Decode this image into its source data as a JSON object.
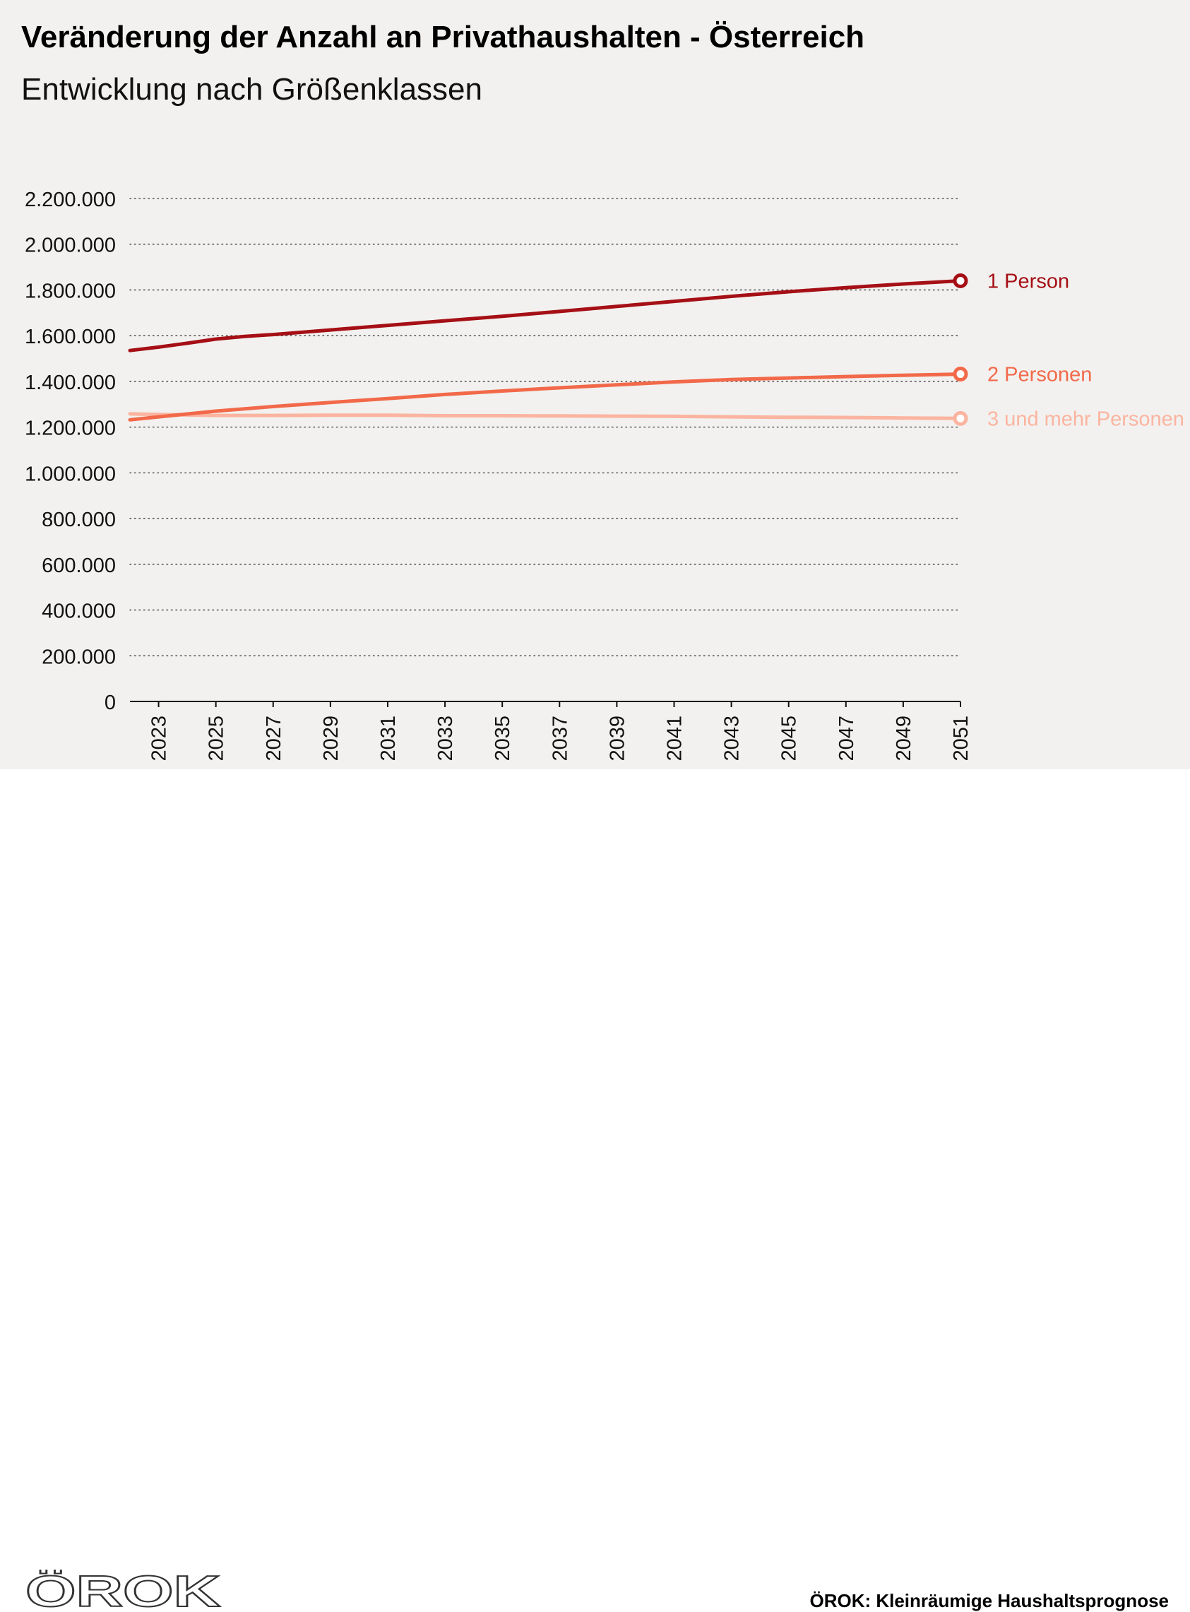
{
  "header": {
    "title": "Veränderung der Anzahl an Privathaushalten - Österreich",
    "subtitle": "Entwicklung nach Größenklassen"
  },
  "footer": {
    "logo_text": "ÖROK",
    "source": "ÖROK: Kleinräumige Haushaltsprognose"
  },
  "chart_data": {
    "type": "line",
    "title": "Veränderung der Anzahl an Privathaushalten - Österreich",
    "subtitle": "Entwicklung nach Größenklassen",
    "xlabel": "",
    "ylabel": "",
    "ylim": [
      0,
      2200000
    ],
    "yticks": [
      0,
      200000,
      400000,
      600000,
      800000,
      1000000,
      1200000,
      1400000,
      1600000,
      1800000,
      2000000,
      2200000
    ],
    "ytick_labels": [
      "0",
      "200.000",
      "400.000",
      "600.000",
      "800.000",
      "1.000.000",
      "1.200.000",
      "1.400.000",
      "1.600.000",
      "1.800.000",
      "2.000.000",
      "2.200.000"
    ],
    "xlim": [
      2022,
      2051
    ],
    "xticks": [
      2023,
      2025,
      2027,
      2029,
      2031,
      2033,
      2035,
      2037,
      2039,
      2041,
      2043,
      2045,
      2047,
      2049,
      2051
    ],
    "xtick_labels": [
      "2023",
      "2025",
      "2027",
      "2029",
      "2031",
      "2033",
      "2035",
      "2037",
      "2039",
      "2041",
      "2043",
      "2045",
      "2047",
      "2049",
      "2051"
    ],
    "grid": "horizontal dotted",
    "legend": "direct labels at line ends (right)",
    "series": [
      {
        "name": "1 Person",
        "color": "#a50f15",
        "x": [
          2022,
          2023,
          2024,
          2025,
          2026,
          2027,
          2029,
          2031,
          2033,
          2035,
          2037,
          2039,
          2041,
          2043,
          2045,
          2047,
          2049,
          2051
        ],
        "values": [
          1535000,
          1550000,
          1567000,
          1585000,
          1597000,
          1605000,
          1625000,
          1645000,
          1665000,
          1685000,
          1706000,
          1728000,
          1750000,
          1772000,
          1792000,
          1810000,
          1826000,
          1840000
        ]
      },
      {
        "name": "2 Personen",
        "color": "#f2694a",
        "x": [
          2022,
          2023,
          2025,
          2027,
          2029,
          2031,
          2033,
          2035,
          2037,
          2039,
          2041,
          2043,
          2045,
          2047,
          2049,
          2051
        ],
        "values": [
          1232000,
          1245000,
          1270000,
          1290000,
          1308000,
          1325000,
          1343000,
          1358000,
          1372000,
          1385000,
          1398000,
          1408000,
          1415000,
          1421000,
          1427000,
          1432000
        ]
      },
      {
        "name": "3 und mehr Personen",
        "color": "#fbb4a0",
        "x": [
          2022,
          2023,
          2025,
          2027,
          2029,
          2031,
          2033,
          2035,
          2037,
          2039,
          2041,
          2043,
          2045,
          2047,
          2049,
          2051
        ],
        "values": [
          1258000,
          1255000,
          1251000,
          1251000,
          1252000,
          1252000,
          1250000,
          1250000,
          1249000,
          1248000,
          1247000,
          1245000,
          1243000,
          1242000,
          1240000,
          1238000
        ]
      }
    ]
  }
}
